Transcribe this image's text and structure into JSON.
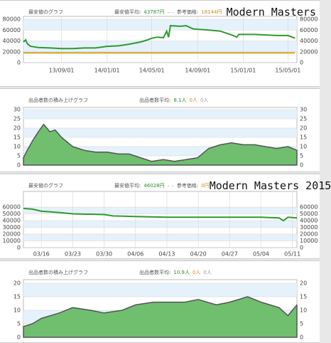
{
  "chart_data": [
    {
      "type": "line",
      "heading": "最安値のグラフ",
      "title": "Modern Masters",
      "stats": [
        {
          "label": "最安値平均:",
          "text": "43787円",
          "color": "#2e8b2e"
        },
        {
          "label": "参考価格:",
          "text": "18144円",
          "color": "#d08a1a"
        }
      ],
      "x": [
        "13/05/22",
        "13/05/28",
        "13/06/01",
        "13/06/10",
        "13/07/01",
        "13/08/01",
        "13/09/01",
        "13/10/01",
        "13/11/01",
        "13/12/01",
        "14/01/01",
        "14/02/01",
        "14/03/01",
        "14/04/01",
        "14/04/20",
        "14/05/01",
        "14/05/15",
        "14/06/01",
        "14/06/10",
        "14/06/15",
        "14/06/20",
        "14/07/15",
        "14/08/01",
        "14/08/20",
        "14/10/01",
        "14/11/01",
        "14/12/01",
        "14/12/15",
        "14/12/20",
        "15/02/01",
        "15/03/01",
        "15/04/01",
        "15/05/01",
        "15/05/20"
      ],
      "series": [
        {
          "color": "#2e9a2e",
          "values": [
            38000,
            42000,
            35000,
            30000,
            28000,
            27000,
            26000,
            26000,
            27000,
            27000,
            30000,
            31000,
            34000,
            38000,
            42000,
            45000,
            47000,
            46000,
            58000,
            47000,
            68000,
            67000,
            68000,
            62000,
            60000,
            58000,
            51000,
            47000,
            52000,
            52000,
            51000,
            50000,
            50000,
            45000
          ]
        },
        {
          "color": "#d4a020",
          "values": [
            18144,
            18144,
            18144,
            18144,
            18144,
            18144,
            18144,
            18144,
            18144,
            18144,
            18144,
            18144,
            18144,
            18144,
            18144,
            18144,
            18144,
            18144,
            18144,
            18144,
            18144,
            18144,
            18144,
            18144,
            18144,
            18144,
            18144,
            18144,
            18144,
            18144,
            18144,
            18144,
            18144,
            18144
          ]
        }
      ],
      "xlim": [
        "13/05/22",
        "15/05/25"
      ],
      "xticks": [
        "13/09/01",
        "14/01/01",
        "14/05/01",
        "14/09/01",
        "15/01/01",
        "15/05/01"
      ],
      "ylim": [
        0,
        80000
      ],
      "yticks": [
        0,
        20000,
        40000,
        60000,
        80000
      ],
      "grid": true
    },
    {
      "type": "area",
      "heading": "出品者数の積み上げグラフ",
      "stats": [
        {
          "label": "出品者数平均:",
          "text": "8.1人",
          "color": "#2e8b2e"
        },
        {
          "text": "0人",
          "color": "#d08a1a"
        },
        {
          "text": "0人",
          "color": "#999999"
        }
      ],
      "x": [
        "13/05/22",
        "13/06/01",
        "13/06/15",
        "13/07/01",
        "13/07/15",
        "13/08/01",
        "13/08/15",
        "13/09/01",
        "13/10/01",
        "13/11/01",
        "13/12/01",
        "14/01/01",
        "14/02/01",
        "14/03/01",
        "14/04/01",
        "14/05/01",
        "14/06/01",
        "14/07/01",
        "14/08/01",
        "14/09/01",
        "14/10/01",
        "14/11/01",
        "14/12/01",
        "15/01/01",
        "15/02/01",
        "15/03/01",
        "15/04/01",
        "15/05/01",
        "15/05/25"
      ],
      "series": [
        {
          "color": "#6fbf6f",
          "values": [
            4,
            8,
            13,
            18,
            22,
            18,
            19,
            15,
            10,
            8,
            7,
            7,
            6,
            6,
            4,
            2,
            3,
            2,
            3,
            4,
            9,
            11,
            12,
            11,
            11,
            10,
            9,
            10,
            8
          ]
        }
      ],
      "xlim": [
        "13/05/22",
        "15/05/25"
      ],
      "ylim": [
        0,
        30
      ],
      "yticks": [
        0,
        5,
        10,
        15,
        20,
        25,
        30
      ],
      "grid": true
    },
    {
      "type": "line",
      "heading": "最安値のグラフ",
      "title": "Modern Masters 2015",
      "stats": [
        {
          "label": "最安値平均:",
          "text": "46028円",
          "color": "#2e8b2e"
        },
        {
          "label": "参考価格:",
          "text": "0円",
          "color": "#d08a1a"
        }
      ],
      "x": [
        "03/12",
        "03/14",
        "03/16",
        "03/20",
        "03/23",
        "03/30",
        "04/01",
        "04/06",
        "04/13",
        "04/20",
        "04/27",
        "05/04",
        "05/08",
        "05/09",
        "05/10",
        "05/12"
      ],
      "series": [
        {
          "color": "#2e9a2e",
          "values": [
            58000,
            57000,
            54000,
            52000,
            50000,
            49000,
            47000,
            46000,
            45000,
            45000,
            45000,
            45000,
            44000,
            40000,
            45000,
            44000
          ]
        }
      ],
      "xlim": [
        "03/12",
        "05/12"
      ],
      "xticks": [
        "03/16",
        "03/23",
        "03/30",
        "04/06",
        "04/13",
        "04/20",
        "04/27",
        "05/04",
        "05/11"
      ],
      "ylim": [
        0,
        60000
      ],
      "yticks": [
        0,
        10000,
        20000,
        30000,
        40000,
        50000,
        60000
      ],
      "grid": true
    },
    {
      "type": "area",
      "heading": "出品者数の積み上げグラフ",
      "stats": [
        {
          "label": "出品者数平均:",
          "text": "10.9人",
          "color": "#2e8b2e"
        },
        {
          "text": "0人",
          "color": "#d08a1a"
        },
        {
          "text": "0人",
          "color": "#999999"
        }
      ],
      "x": [
        "03/12",
        "03/14",
        "03/16",
        "03/20",
        "03/23",
        "03/27",
        "03/30",
        "04/03",
        "04/06",
        "04/10",
        "04/13",
        "04/17",
        "04/20",
        "04/24",
        "04/27",
        "05/01",
        "05/04",
        "05/06",
        "05/08",
        "05/10",
        "05/12"
      ],
      "series": [
        {
          "color": "#6fbf6f",
          "values": [
            4,
            5,
            7,
            9,
            11,
            10,
            9,
            10,
            12,
            13,
            13,
            13,
            14,
            12,
            13,
            15,
            13,
            12,
            11,
            8,
            12
          ]
        }
      ],
      "xlim": [
        "03/12",
        "05/12"
      ],
      "ylim": [
        0,
        20
      ],
      "yticks": [
        0,
        5,
        10,
        15,
        20
      ],
      "grid": true
    }
  ]
}
